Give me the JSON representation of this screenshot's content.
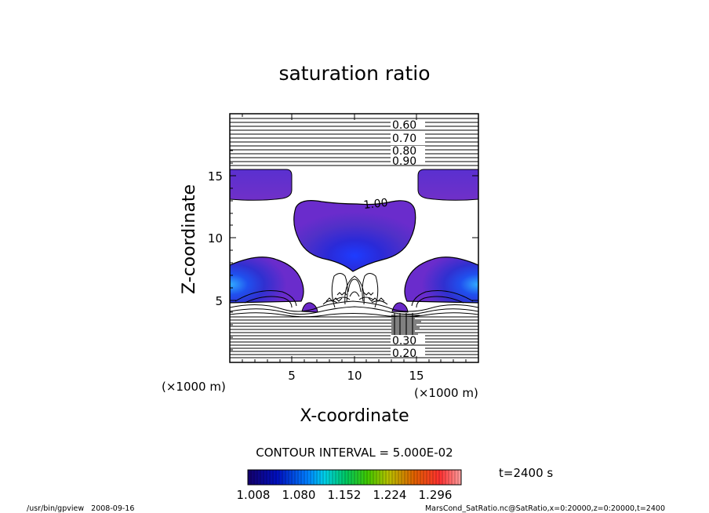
{
  "chart_data": {
    "type": "contour",
    "title": "saturation ratio",
    "xlabel": "X-coordinate",
    "ylabel": "Z-coordinate",
    "x_unit": "(×1000 m)",
    "y_unit": "(×1000 m)",
    "xlim": [
      0,
      20
    ],
    "ylim": [
      0,
      20
    ],
    "x_ticks": [
      5,
      10,
      15
    ],
    "y_ticks": [
      5,
      10,
      15
    ],
    "contour_labels": [
      {
        "text": "0.60",
        "z": 19.0
      },
      {
        "text": "0.70",
        "z": 18.1
      },
      {
        "text": "0.80",
        "z": 17.3
      },
      {
        "text": "0.90",
        "z": 16.4
      },
      {
        "text": "1.00",
        "z": 12.7
      },
      {
        "text": "0.30",
        "z": 1.6
      },
      {
        "text": "0.20",
        "z": 0.8
      }
    ],
    "contour_interval_label": "CONTOUR INTERVAL = 5.000E-02",
    "colorbar": {
      "ticks": [
        "1.008",
        "1.080",
        "1.152",
        "1.224",
        "1.296"
      ],
      "colors": [
        "#14006a",
        "#0020d8",
        "#00a8ff",
        "#00c870",
        "#50d000",
        "#d8b000",
        "#ff4030",
        "#ff9898"
      ]
    },
    "time_label": "t=2400 s"
  },
  "footer": {
    "left": "/usr/bin/gpview   2008-09-16",
    "right": "MarsCond_SatRatio.nc@SatRatio,x=0:20000,z=0:20000,t=2400"
  }
}
